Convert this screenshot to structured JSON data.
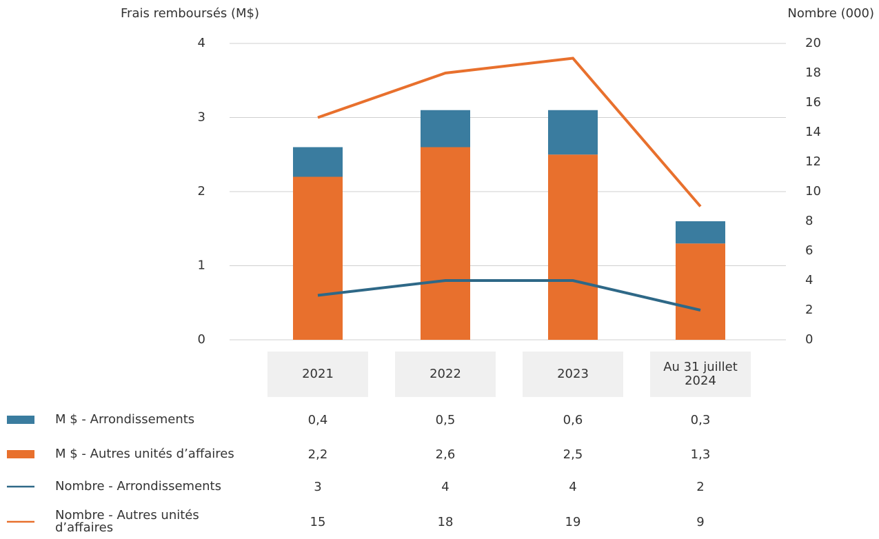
{
  "chart_data": {
    "type": "bar",
    "y_label": "Frais remboursés (M$)",
    "y2_label": "Nombre (000)",
    "categories": [
      "2021",
      "2022",
      "2023",
      "Au 31 juillet 2024"
    ],
    "series": [
      {
        "name": "M $ - Arrondissements",
        "type": "bar",
        "color": "#3a7c9f",
        "values": [
          0.4,
          0.5,
          0.6,
          0.3
        ],
        "value_labels": [
          "0,4",
          "0,5",
          "0,6",
          "0,3"
        ]
      },
      {
        "name": "M $ - Autres unités d’affaires",
        "type": "bar",
        "color": "#e8702d",
        "values": [
          2.2,
          2.6,
          2.5,
          1.3
        ],
        "value_labels": [
          "2,2",
          "2,6",
          "2,5",
          "1,3"
        ]
      },
      {
        "name": "Nombre - Arrondissements",
        "type": "line",
        "axis": "y2",
        "color": "#2e6887",
        "values": [
          3,
          4,
          4,
          2
        ]
      },
      {
        "name": "Nombre - Autres unités d’affaires",
        "type": "line",
        "axis": "y2",
        "color": "#e8702d",
        "values": [
          15,
          18,
          19,
          9
        ]
      }
    ],
    "ylim": [
      0,
      4
    ],
    "yticks": [
      0,
      1,
      2,
      3,
      4
    ],
    "y2lim": [
      0,
      20
    ],
    "y2ticks": [
      0,
      2,
      4,
      6,
      8,
      10,
      12,
      14,
      16,
      18,
      20
    ],
    "grid": true
  }
}
